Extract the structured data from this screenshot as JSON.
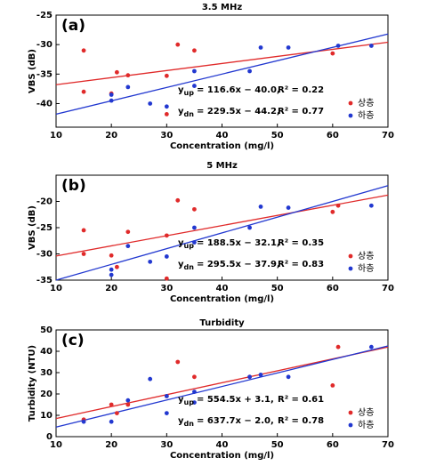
{
  "chart_data": [
    {
      "type": "scatter",
      "title": "3.5 MHz",
      "panel_label": "(a)",
      "x_label": "Concentration (mg/l)",
      "y_label": "VBS (dB)",
      "xlim": [
        10,
        70
      ],
      "xticks": [
        10,
        20,
        30,
        40,
        50,
        60,
        70
      ],
      "ylim": [
        -44,
        -25
      ],
      "yticks": [
        -40,
        -35,
        -30,
        -25
      ],
      "legend": "lower right",
      "series": [
        {
          "name": "상층",
          "color": "#e02a2a",
          "x": [
            15,
            15,
            20,
            21,
            23,
            30,
            30,
            32,
            35,
            60
          ],
          "values": [
            -31,
            -38,
            -38.3,
            -34.7,
            -35.2,
            -35.3,
            -41.8,
            -30,
            -31,
            -31.5
          ]
        },
        {
          "name": "하층",
          "color": "#2238d0",
          "x": [
            20,
            20,
            23,
            27,
            30,
            35,
            35,
            45,
            47,
            52,
            61,
            67
          ],
          "values": [
            -38.5,
            -39.5,
            -37.2,
            -40,
            -40.5,
            -34.5,
            -37,
            -34.5,
            -30.5,
            -30.5,
            -30.2,
            -30.2
          ]
        }
      ],
      "fit_lines": [
        {
          "color": "#e02a2a",
          "x": [
            10,
            70
          ],
          "values": [
            -36.8,
            -29.6
          ]
        },
        {
          "color": "#2238d0",
          "x": [
            10,
            70
          ],
          "values": [
            -41.8,
            -28.2
          ]
        }
      ],
      "equations": [
        {
          "y": "y",
          "sub": "up",
          "formula": "= 116.6x  −  40.0,",
          "r2": "R² = 0.22",
          "color": "#e02a2a"
        },
        {
          "y": "y",
          "sub": "dn",
          "formula": "= 229.5x  −  44.2,",
          "r2": "R² = 0.77",
          "color": "#2238d0"
        }
      ]
    },
    {
      "type": "scatter",
      "title": "5 MHz",
      "panel_label": "(b)",
      "x_label": "Concentration (mg/l)",
      "y_label": "VBS (dB)",
      "xlim": [
        10,
        70
      ],
      "xticks": [
        10,
        20,
        30,
        40,
        50,
        60,
        70
      ],
      "ylim": [
        -35,
        -15
      ],
      "yticks": [
        -35,
        -30,
        -25,
        -20
      ],
      "legend": "lower right",
      "series": [
        {
          "name": "상층",
          "color": "#e02a2a",
          "x": [
            15,
            15,
            20,
            21,
            23,
            30,
            30,
            32,
            35,
            60,
            61
          ],
          "values": [
            -25.5,
            -30,
            -30.3,
            -32.5,
            -25.8,
            -26.5,
            -34.7,
            -19.8,
            -21.5,
            -22,
            -20.8
          ]
        },
        {
          "name": "하층",
          "color": "#2238d0",
          "x": [
            20,
            20,
            23,
            27,
            30,
            35,
            35,
            45,
            47,
            52,
            67
          ],
          "values": [
            -33,
            -34,
            -28.5,
            -31.5,
            -30.5,
            -27.8,
            -25,
            -25,
            -21,
            -21.2,
            -20.8
          ]
        }
      ],
      "fit_lines": [
        {
          "color": "#e02a2a",
          "x": [
            10,
            70
          ],
          "values": [
            -30.4,
            -18.8
          ]
        },
        {
          "color": "#2238d0",
          "x": [
            10,
            70
          ],
          "values": [
            -35,
            -17
          ]
        }
      ],
      "equations": [
        {
          "y": "y",
          "sub": "up",
          "formula": "= 188.5x  −  32.1,",
          "r2": "R² = 0.35",
          "color": "#e02a2a"
        },
        {
          "y": "y",
          "sub": "dn",
          "formula": "= 295.5x  −  37.9,",
          "r2": "R² = 0.83",
          "color": "#2238d0"
        }
      ]
    },
    {
      "type": "scatter",
      "title": "Turbidity",
      "panel_label": "(c)",
      "x_label": "Concentration (mg/l)",
      "y_label": "Turbidity (NTU)",
      "xlim": [
        10,
        70
      ],
      "xticks": [
        10,
        20,
        30,
        40,
        50,
        60,
        70
      ],
      "ylim": [
        0,
        50
      ],
      "yticks": [
        0,
        10,
        20,
        30,
        40,
        50
      ],
      "legend": "lower right",
      "series": [
        {
          "name": "상층",
          "color": "#e02a2a",
          "x": [
            15,
            20,
            21,
            23,
            30,
            32,
            35,
            45,
            60,
            61
          ],
          "values": [
            8,
            15,
            11,
            15,
            19,
            35,
            28,
            28,
            24,
            42
          ]
        },
        {
          "name": "하층",
          "color": "#2238d0",
          "x": [
            15,
            20,
            23,
            27,
            30,
            30,
            35,
            35,
            45,
            47,
            52,
            67
          ],
          "values": [
            7,
            7,
            17,
            27,
            11,
            19,
            16,
            21,
            28,
            29,
            28,
            42
          ]
        }
      ],
      "fit_lines": [
        {
          "color": "#e02a2a",
          "x": [
            10,
            70
          ],
          "values": [
            8.5,
            42
          ]
        },
        {
          "color": "#2238d0",
          "x": [
            10,
            70
          ],
          "values": [
            4.5,
            42.5
          ]
        }
      ],
      "equations": [
        {
          "y": "y",
          "sub": "up",
          "formula": "= 554.5x  +  3.1,",
          "r2": "R² = 0.61",
          "color": "#e02a2a"
        },
        {
          "y": "y",
          "sub": "dn",
          "formula": "= 637.7x  −  2.0,",
          "r2": "R² = 0.78",
          "color": "#2238d0"
        }
      ]
    }
  ]
}
